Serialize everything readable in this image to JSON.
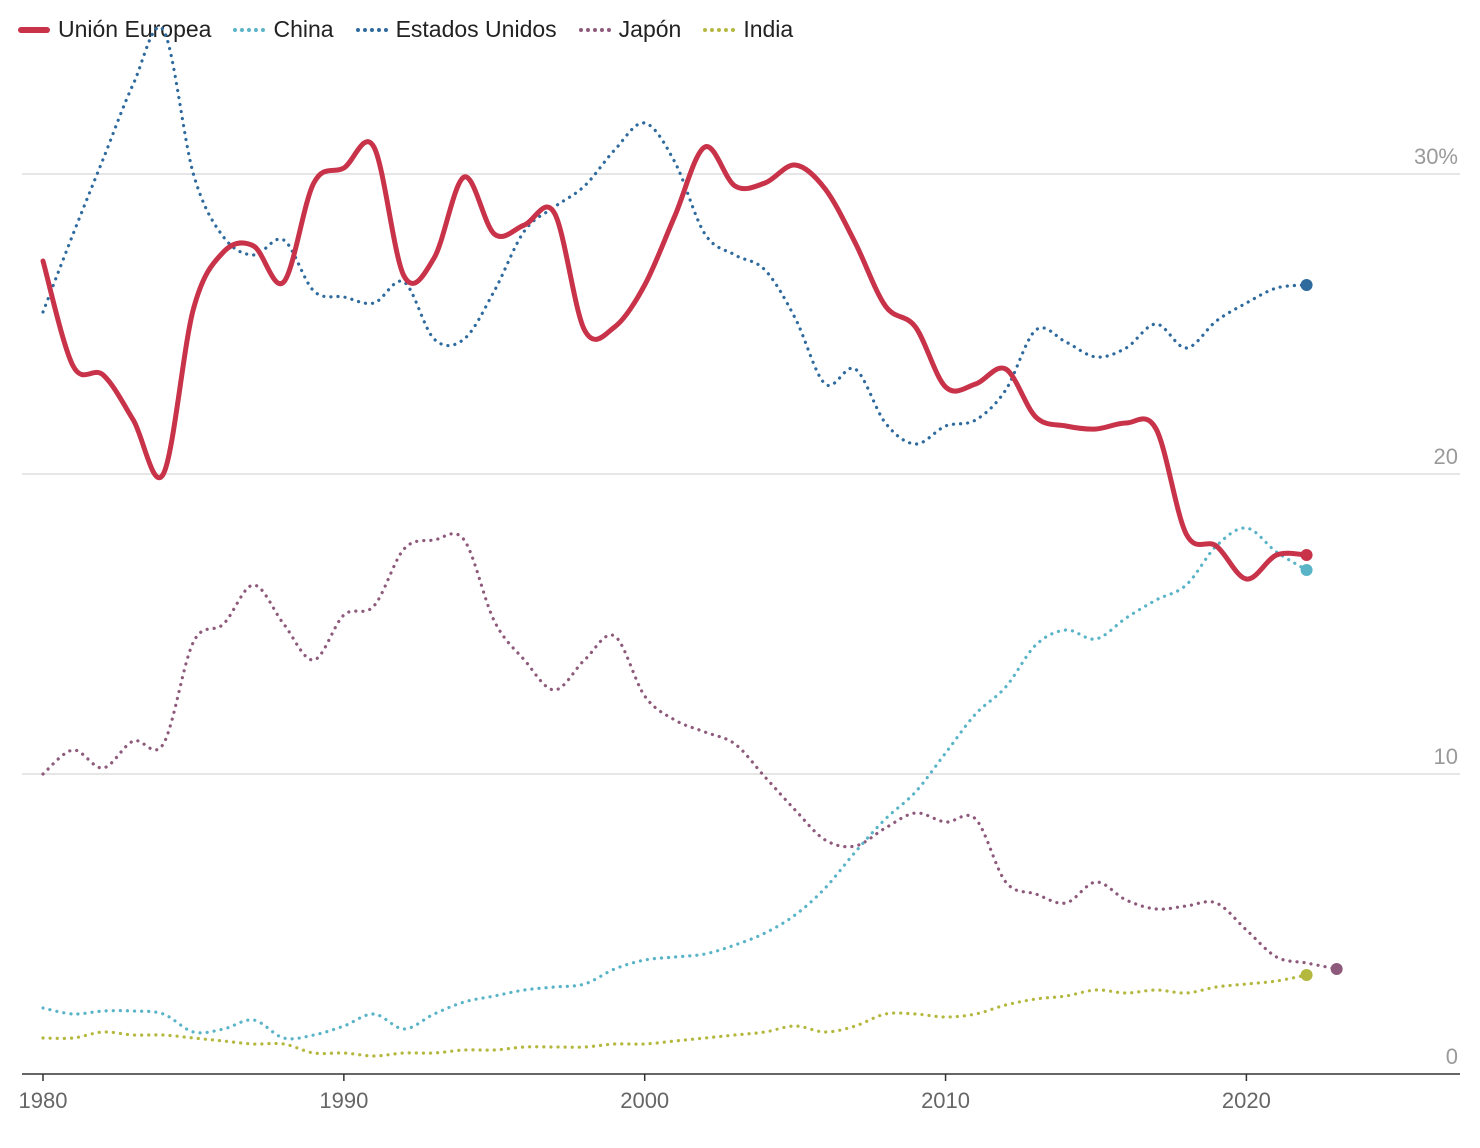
{
  "chart_data": {
    "type": "line",
    "title": "",
    "xlabel": "",
    "ylabel": "",
    "xlim": [
      1980,
      2027
    ],
    "ylim": [
      0,
      33
    ],
    "x_ticks": [
      1980,
      1990,
      2000,
      2010,
      2020
    ],
    "x_tick_labels": [
      "1980",
      "1990",
      "2000",
      "2010",
      "2020"
    ],
    "y_ticks": [
      0,
      10,
      20,
      30
    ],
    "y_tick_labels": [
      "0",
      "10",
      "20",
      "30%"
    ],
    "grid": "horizontal",
    "legend_position": "top-left",
    "x": [
      1980,
      1981,
      1982,
      1983,
      1984,
      1985,
      1986,
      1987,
      1988,
      1989,
      1990,
      1991,
      1992,
      1993,
      1994,
      1995,
      1996,
      1997,
      1998,
      1999,
      2000,
      2001,
      2002,
      2003,
      2004,
      2005,
      2006,
      2007,
      2008,
      2009,
      2010,
      2011,
      2012,
      2013,
      2014,
      2015,
      2016,
      2017,
      2018,
      2019,
      2020,
      2021,
      2022,
      2023,
      2024
    ],
    "series": [
      {
        "name": "Unión Europea",
        "color": "#c8334a",
        "style": "solid",
        "values": [
          27.1,
          23.6,
          23.3,
          21.8,
          20.0,
          25.5,
          27.4,
          27.6,
          26.4,
          29.7,
          30.2,
          30.9,
          26.6,
          27.2,
          29.9,
          28.0,
          28.3,
          28.7,
          24.8,
          24.9,
          26.3,
          28.6,
          30.9,
          29.6,
          29.7,
          30.3,
          29.5,
          27.7,
          25.6,
          24.9,
          22.9,
          23.0,
          23.5,
          21.9,
          21.6,
          21.5,
          21.7,
          21.5,
          18.0,
          17.6,
          16.5,
          17.3,
          17.3,
          null,
          null
        ]
      },
      {
        "name": "China",
        "color": "#5ab4c8",
        "style": "dotted",
        "values": [
          2.2,
          2.0,
          2.1,
          2.1,
          2.0,
          1.4,
          1.5,
          1.8,
          1.2,
          1.3,
          1.6,
          2.0,
          1.5,
          2.0,
          2.4,
          2.6,
          2.8,
          2.9,
          3.0,
          3.5,
          3.8,
          3.9,
          4.0,
          4.3,
          4.7,
          5.3,
          6.2,
          7.4,
          8.5,
          9.4,
          10.7,
          12.0,
          12.9,
          14.3,
          14.8,
          14.5,
          15.2,
          15.8,
          16.3,
          17.6,
          18.2,
          17.4,
          16.8,
          null,
          null
        ]
      },
      {
        "name": "Estados Unidos",
        "color": "#2e6a9e",
        "style": "dotted",
        "values": [
          25.4,
          28.0,
          30.5,
          33.0,
          34.8,
          30.0,
          27.9,
          27.3,
          27.8,
          26.1,
          25.9,
          25.7,
          26.4,
          24.5,
          24.5,
          26.1,
          28.1,
          28.9,
          29.6,
          30.8,
          31.7,
          30.4,
          28.0,
          27.3,
          26.8,
          25.2,
          23.0,
          23.5,
          21.7,
          21.0,
          21.6,
          21.8,
          22.8,
          24.8,
          24.4,
          23.9,
          24.2,
          25.0,
          24.2,
          25.1,
          25.7,
          26.2,
          26.3,
          null,
          null
        ]
      },
      {
        "name": "Japón",
        "color": "#8e5a7c",
        "style": "dotted",
        "values": [
          10.0,
          10.8,
          10.2,
          11.1,
          11.0,
          14.4,
          15.0,
          16.3,
          15.0,
          13.8,
          15.3,
          15.6,
          17.5,
          17.8,
          17.8,
          15.1,
          13.8,
          12.8,
          13.8,
          14.6,
          12.6,
          11.8,
          11.4,
          11.0,
          9.9,
          8.8,
          7.8,
          7.6,
          8.2,
          8.7,
          8.4,
          8.5,
          6.4,
          6.0,
          5.7,
          6.4,
          5.8,
          5.5,
          5.6,
          5.7,
          4.8,
          3.9,
          3.7,
          3.5,
          null
        ]
      },
      {
        "name": "India",
        "color": "#b5b83f",
        "style": "dotted",
        "values": [
          1.2,
          1.2,
          1.4,
          1.3,
          1.3,
          1.2,
          1.1,
          1.0,
          1.0,
          0.7,
          0.7,
          0.6,
          0.7,
          0.7,
          0.8,
          0.8,
          0.9,
          0.9,
          0.9,
          1.0,
          1.0,
          1.1,
          1.2,
          1.3,
          1.4,
          1.6,
          1.4,
          1.6,
          2.0,
          2.0,
          1.9,
          2.0,
          2.3,
          2.5,
          2.6,
          2.8,
          2.7,
          2.8,
          2.7,
          2.9,
          3.0,
          3.1,
          3.3,
          null,
          null
        ]
      }
    ]
  }
}
